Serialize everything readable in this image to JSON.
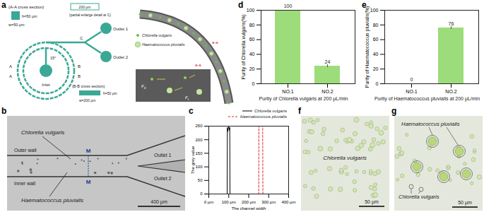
{
  "panel_labels": [
    "a",
    "b",
    "c",
    "d",
    "e",
    "f",
    "g"
  ],
  "schematic": {
    "section_a": {
      "title": "(A-A cross section)",
      "height": "h=50 μm",
      "width": "w=50 μm"
    },
    "detail": {
      "width": "200 μm",
      "caption": "(partial enlarge detail at C)",
      "point": "C"
    },
    "outlets": [
      "Outlet 1",
      "Outlet 2"
    ],
    "marks_a": [
      "A",
      "A"
    ],
    "marks_b": [
      "B",
      "B"
    ],
    "inlet": "Inlet",
    "angle": "15°",
    "section_b": {
      "title": "(B-B cross section)",
      "height": "h=50 μm",
      "width": "w=200 μm"
    },
    "cells": [
      "Chlorella vulgaris",
      "Haematococcus pluvialis"
    ],
    "section_label": "a-a",
    "forces": [
      {
        "symbol": "F",
        "sub": "D"
      },
      {
        "symbol": "F",
        "sub": "L"
      }
    ]
  },
  "micrograph_b": {
    "top_cell": "Chlorella vulgaris",
    "outlets": [
      "Outlet 1",
      "Outlet 2"
    ],
    "outer_wall": "Outer wall",
    "inner_wall": "Inner wall",
    "marker": "M",
    "bottom_cell": "Haematococcus pluvialis",
    "scale_bar": "400 μm"
  },
  "micrograph_f": {
    "cell": "Chlorella vulgaris",
    "scale_bar": "50 μm"
  },
  "micrograph_g": {
    "cells": [
      "Haematococcus pluvialis",
      "Chlorella vulgaris"
    ],
    "scale_bar": "50 μm"
  },
  "chart_data": [
    {
      "type": "line",
      "xlabel": "The channel width",
      "ylabel": "The grey value",
      "xlim": [
        0,
        400
      ],
      "xticks": [
        {
          "value": 0,
          "label": "0 μm"
        },
        {
          "value": 100,
          "label": "100 μm"
        },
        {
          "value": 200,
          "label": "200 μm"
        },
        {
          "value": 300,
          "label": "300 μm"
        },
        {
          "value": 400,
          "label": "400 μm"
        }
      ],
      "ylim": [
        0,
        250
      ],
      "yticks": [
        0,
        50,
        100,
        150,
        200,
        250
      ],
      "legend": "top-right",
      "series": [
        {
          "name": "Chlorella vulgaris",
          "color": "#000000",
          "line_style": "solid",
          "x": [
            0,
            92,
            93,
            95,
            97,
            100,
            103,
            105,
            106,
            400
          ],
          "values": [
            0,
            0,
            245,
            230,
            240,
            250,
            235,
            245,
            0,
            0
          ]
        },
        {
          "name": "Haematococcus pluvialis",
          "color": "#e8282b",
          "line_style": "dashed",
          "x": [
            0,
            250,
            251,
            270,
            271,
            400
          ],
          "values": [
            0,
            0,
            250,
            250,
            0,
            0
          ]
        }
      ]
    },
    {
      "type": "bar",
      "categories": [
        "NO.1",
        "NO.2"
      ],
      "values": [
        100,
        24
      ],
      "errors": [
        null,
        2
      ],
      "color": "#9ddc7a",
      "ylabel": "Purity of Chlorella vulgaris(%)",
      "xlabel": "Purity of Chlorella vulgaris at 200 μL/min",
      "ylim": [
        0,
        100
      ],
      "yticks": [
        0,
        20,
        40,
        60,
        80,
        100
      ],
      "data_labels": true
    },
    {
      "type": "bar",
      "categories": [
        "NO.1",
        "NO.2"
      ],
      "values": [
        0,
        76
      ],
      "errors": [
        null,
        2
      ],
      "color": "#9ddc7a",
      "ylabel": "Purity of Haematococcus pluvialis(%)",
      "xlabel": "Purity of Haematococcus pluvialis at 200 μL/min",
      "ylim": [
        0,
        100
      ],
      "yticks": [
        0,
        20,
        40,
        60,
        80,
        100
      ],
      "data_labels": true
    }
  ]
}
